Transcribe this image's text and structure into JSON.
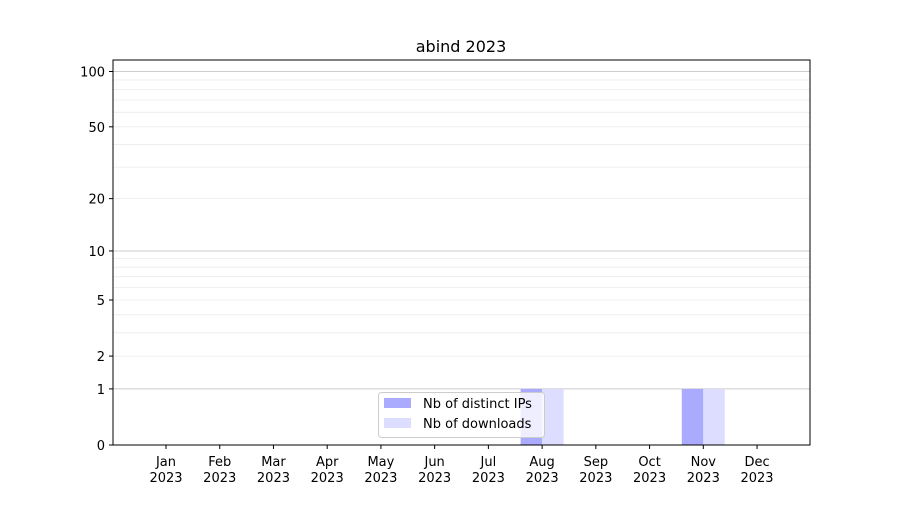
{
  "chart_data": {
    "type": "bar",
    "title": "abind 2023",
    "xlabel": "",
    "ylabel": "",
    "categories": [
      "Jan\n2023",
      "Feb\n2023",
      "Mar\n2023",
      "Apr\n2023",
      "May\n2023",
      "Jun\n2023",
      "Jul\n2023",
      "Aug\n2023",
      "Sep\n2023",
      "Oct\n2023",
      "Nov\n2023",
      "Dec\n2023"
    ],
    "series": [
      {
        "name": "Nb of distinct IPs",
        "color": "#aaaaff",
        "values": [
          0,
          0,
          0,
          0,
          0,
          0,
          0,
          1,
          0,
          0,
          1,
          0
        ]
      },
      {
        "name": "Nb of downloads",
        "color": "#ddddff",
        "values": [
          0,
          0,
          0,
          0,
          0,
          0,
          0,
          1,
          0,
          0,
          1,
          0
        ]
      }
    ],
    "yscale": "symlog (log of 1+y)",
    "yticks": [
      0,
      1,
      2,
      5,
      10,
      20,
      50,
      100
    ],
    "ylim": [
      0,
      116
    ],
    "grid": true,
    "legend": "lower-center"
  }
}
